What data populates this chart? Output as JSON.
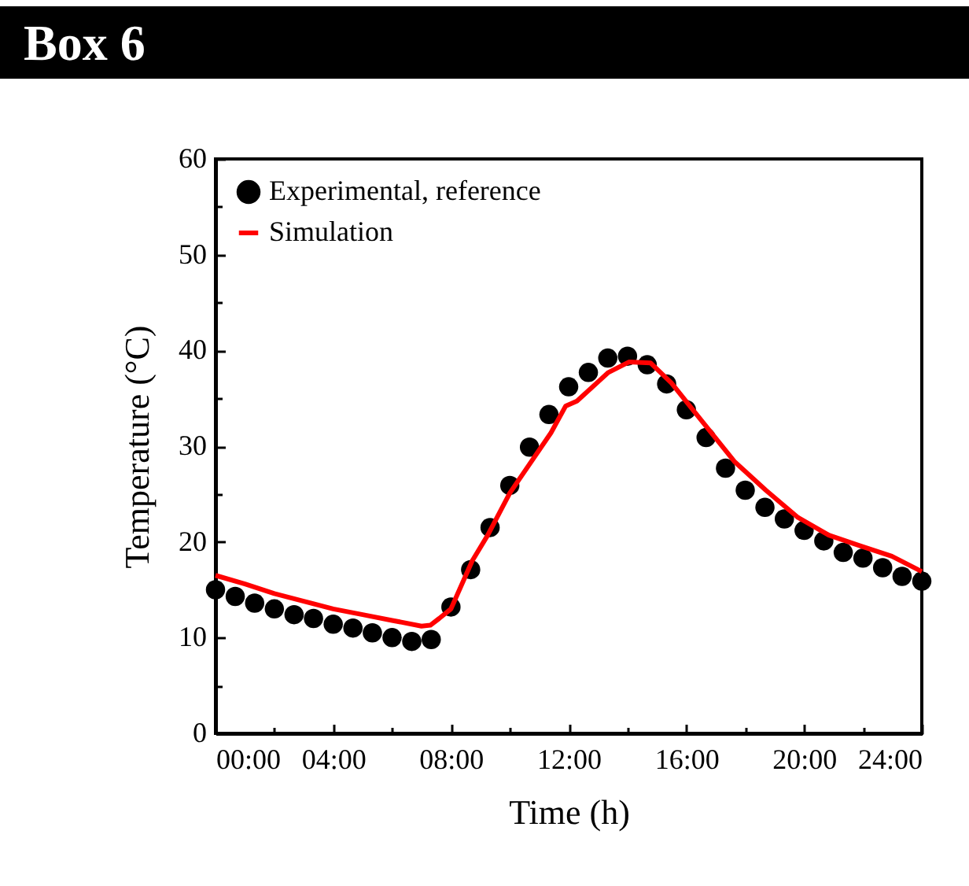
{
  "chart_data": {
    "type": "scatter",
    "title": "Box 6",
    "xlabel": "Time (h)",
    "ylabel": "Temperature (°C)",
    "xlim": [
      0,
      24
    ],
    "ylim": [
      0,
      60
    ],
    "xticks": [
      {
        "value": 0,
        "label": "00:00"
      },
      {
        "value": 2,
        "label": null
      },
      {
        "value": 4,
        "label": "04:00"
      },
      {
        "value": 6,
        "label": null
      },
      {
        "value": 8,
        "label": "08:00"
      },
      {
        "value": 10,
        "label": null
      },
      {
        "value": 12,
        "label": "12:00"
      },
      {
        "value": 14,
        "label": null
      },
      {
        "value": 16,
        "label": "16:00"
      },
      {
        "value": 18,
        "label": null
      },
      {
        "value": 20,
        "label": "20:00"
      },
      {
        "value": 22,
        "label": null
      },
      {
        "value": 24,
        "label": "24:00"
      }
    ],
    "yticks": [
      0,
      {
        "value": 5,
        "label": null
      },
      10,
      {
        "value": 15,
        "label": null
      },
      20,
      {
        "value": 25,
        "label": null
      },
      30,
      {
        "value": 35,
        "label": null
      },
      40,
      {
        "value": 45,
        "label": null
      },
      50,
      {
        "value": 55,
        "label": null
      },
      60
    ],
    "legend": "top left",
    "grid": false,
    "series": [
      {
        "name": "Experimental, reference",
        "type": "scatter",
        "marker": "circle",
        "color": "#000000",
        "x": [
          0,
          0.67,
          1.33,
          2,
          2.67,
          3.33,
          4,
          4.67,
          5.33,
          6,
          6.67,
          7.33,
          8,
          8.67,
          9.33,
          10,
          10.67,
          11.33,
          12,
          12.67,
          13.33,
          14,
          14.67,
          15.33,
          16,
          16.67,
          17.33,
          18,
          18.67,
          19.33,
          20,
          20.67,
          21.33,
          22,
          22.67,
          23.33,
          24
        ],
        "values": [
          15.0,
          14.3,
          13.6,
          13.0,
          12.4,
          12.0,
          11.4,
          11.0,
          10.5,
          10.0,
          9.6,
          9.8,
          13.2,
          17.1,
          21.5,
          25.9,
          29.9,
          33.3,
          36.2,
          37.7,
          39.2,
          39.4,
          38.5,
          36.5,
          33.8,
          30.9,
          27.7,
          25.4,
          23.6,
          22.4,
          21.2,
          20.1,
          18.9,
          18.3,
          17.3,
          16.4,
          15.9
        ]
      },
      {
        "name": "Simulation",
        "type": "line",
        "marker": "none",
        "line_style": "solid",
        "color": "#ff0000",
        "x": [
          0,
          1,
          2,
          3,
          4,
          5,
          6,
          7,
          7.3,
          7.6,
          8,
          8.72,
          9.25,
          10,
          11.4,
          11.9,
          12.28,
          13.35,
          14.06,
          14.78,
          15.49,
          16.56,
          17.63,
          18.7,
          19.77,
          20.84,
          21.9,
          22.98,
          24
        ],
        "values": [
          16.5,
          15.6,
          14.6,
          13.8,
          13.0,
          12.4,
          11.8,
          11.2,
          11.3,
          12.0,
          13.0,
          18.0,
          20.7,
          25.1,
          31.4,
          34.2,
          34.7,
          37.7,
          38.8,
          38.7,
          36.6,
          32.5,
          28.4,
          25.4,
          22.6,
          20.7,
          19.6,
          18.5,
          16.9
        ]
      }
    ]
  }
}
